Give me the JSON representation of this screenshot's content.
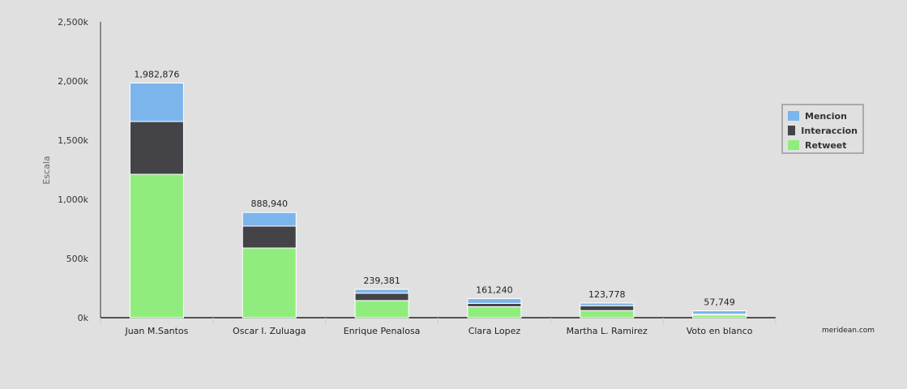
{
  "chart_data": {
    "type": "bar",
    "stacked": true,
    "title": "",
    "xlabel": "",
    "ylabel": "Escala",
    "ylim": [
      0,
      2500000
    ],
    "yticks": [
      0,
      500000,
      1000000,
      1500000,
      2000000,
      2500000
    ],
    "ytick_labels": [
      "0k",
      "500k",
      "1,000k",
      "1,500k",
      "2,000k",
      "2,500k"
    ],
    "categories": [
      "Juan M.Santos",
      "Oscar I. Zuluaga",
      "Enrique Penalosa",
      "Clara Lopez",
      "Martha L. Ramirez",
      "Voto en blanco"
    ],
    "totals": [
      1982876,
      888940,
      239381,
      161240,
      123778,
      57749
    ],
    "total_labels": [
      "1,982,876",
      "888,940",
      "239,381",
      "161,240",
      "123,778",
      "57,749"
    ],
    "series": [
      {
        "name": "Retweet",
        "color": "#90ed7d",
        "values": [
          1212000,
          589000,
          145000,
          93000,
          60000,
          23000
        ]
      },
      {
        "name": "Interaccion",
        "color": "#434348",
        "values": [
          446000,
          185000,
          62000,
          28000,
          41000,
          6000
        ]
      },
      {
        "name": "Mencion",
        "color": "#7cb5ec",
        "values": [
          324876,
          114940,
          32381,
          40240,
          22778,
          28749
        ]
      }
    ],
    "legend": {
      "placement": "right",
      "order": [
        "Mencion",
        "Interaccion",
        "Retweet"
      ]
    },
    "grid": false
  },
  "credit": "meridean.com"
}
